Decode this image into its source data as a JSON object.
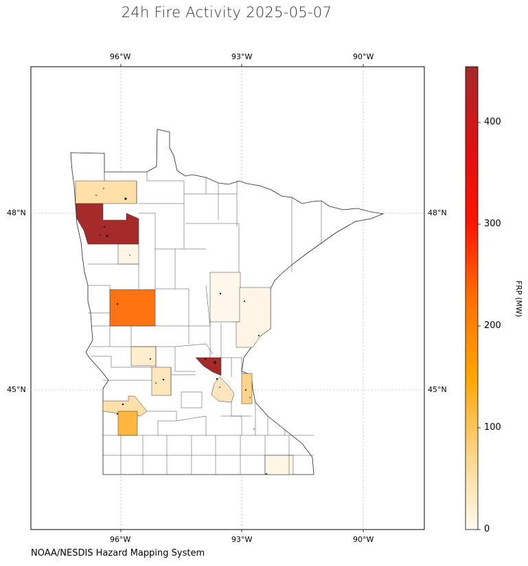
{
  "title": "24h Fire Activity 2025-05-07",
  "credit": "NOAA/NESDIS Hazard Mapping System",
  "map": {
    "lon_ticks": [
      "96°W",
      "93°W",
      "90°W"
    ],
    "lat_ticks": [
      "48°N",
      "45°N"
    ],
    "gridlines": true
  },
  "colorbar": {
    "label": "FRP (MW)",
    "ticks": [
      "0",
      "100",
      "200",
      "300",
      "400"
    ],
    "min": 0,
    "max": 455,
    "colors": [
      "#fff8ec",
      "#ffd98f",
      "#ffb300",
      "#ff8000",
      "#ff2000",
      "#e01010",
      "#a62828"
    ]
  },
  "county_fills": {
    "kittson": "#ffe0a6",
    "polk": "#a52a2a",
    "norman": "#fff6e6",
    "clay": "#ff7410",
    "pine": "#fff7ea",
    "chisago": "#fff5e6",
    "douglas_pope": "#ffedcc",
    "kandiyohi": "#ffe6bb",
    "sherburne": "#a52a2a",
    "hennepin": "#ffe6bf",
    "washington": "#ffd38a",
    "lincoln": "#ffe0a8",
    "pipestone": "#ffb740",
    "houston": "#fff6e6"
  }
}
